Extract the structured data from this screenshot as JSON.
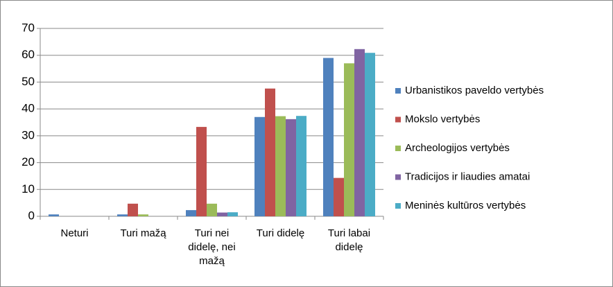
{
  "chart_data": {
    "type": "bar",
    "categories": [
      "Neturi",
      "Turi mažą",
      "Turi nei didelę, nei mažą",
      "Turi didelę",
      "Turi labai didelę"
    ],
    "series": [
      {
        "name": "Urbanistikos paveldo vertybės",
        "color": "#4f81bd",
        "values": [
          0.7,
          0.7,
          2.3,
          37,
          59
        ]
      },
      {
        "name": "Mokslo vertybės",
        "color": "#c0504d",
        "values": [
          0,
          4.7,
          33.3,
          47.6,
          14.3
        ]
      },
      {
        "name": "Archeologijos vertybės",
        "color": "#9bbb59",
        "values": [
          0,
          0.7,
          4.7,
          37.3,
          57
        ]
      },
      {
        "name": "Tradicijos ir liaudies amatai",
        "color": "#8064a2",
        "values": [
          0,
          0,
          1.4,
          36.2,
          62.3
        ]
      },
      {
        "name": "Meninės kultūros vertybės",
        "color": "#4bacc6",
        "values": [
          0,
          0,
          1.5,
          37.4,
          60.9
        ]
      }
    ],
    "ylim": [
      0,
      70
    ],
    "yticks": [
      0,
      10,
      20,
      30,
      40,
      50,
      60,
      70
    ],
    "grid": true,
    "legend": "right"
  }
}
